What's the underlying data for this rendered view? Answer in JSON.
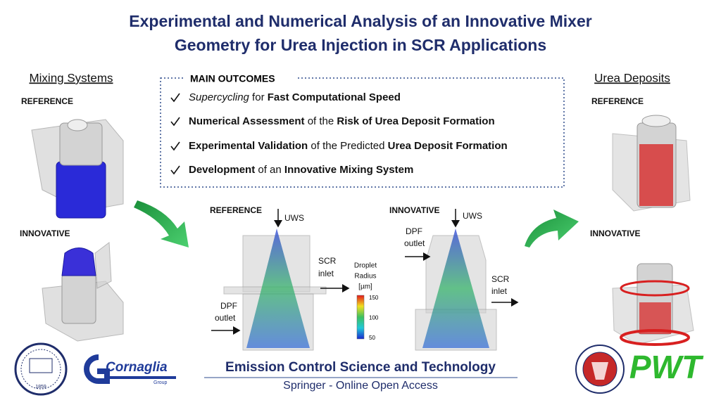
{
  "title": [
    "Experimental and Numerical Analysis of an Innovative Mixer",
    "Geometry for Urea Injection in SCR Applications"
  ],
  "left": {
    "heading": "Mixing Systems",
    "reference": "REFERENCE",
    "innovative": "INNOVATIVE"
  },
  "outcomes": {
    "heading": "MAIN OUTCOMES",
    "items": [
      [
        {
          "text": "Supercycling",
          "style": "italic"
        },
        {
          "text": " for ",
          "style": "normal"
        },
        {
          "text": "Fast Computational Speed",
          "style": "bold"
        }
      ],
      [
        {
          "text": "Numerical Assessment",
          "style": "bold"
        },
        {
          "text": " of the ",
          "style": "normal"
        },
        {
          "text": "Risk of Urea Deposit Formation",
          "style": "bold"
        }
      ],
      [
        {
          "text": "Experimental Validation",
          "style": "bold"
        },
        {
          "text": " of the Predicted ",
          "style": "normal"
        },
        {
          "text": "Urea Deposit Formation",
          "style": "bold"
        }
      ],
      [
        {
          "text": "Development",
          "style": "bold"
        },
        {
          "text": " of an ",
          "style": "normal"
        },
        {
          "text": "Innovative Mixing System",
          "style": "bold"
        }
      ]
    ]
  },
  "center": {
    "reference": {
      "label": "REFERENCE",
      "uws": "UWS",
      "scr": [
        "SCR",
        "inlet"
      ],
      "dpf": [
        "DPF",
        "outlet"
      ]
    },
    "colorbar": {
      "title": [
        "Droplet",
        "Radius",
        "[µm]"
      ],
      "ticks": [
        150,
        100,
        50
      ]
    },
    "innovative": {
      "label": "INNOVATIVE",
      "uws": "UWS",
      "dpf": [
        "DPF",
        "outlet"
      ],
      "scr": [
        "SCR",
        "inlet"
      ]
    }
  },
  "right": {
    "heading": "Urea Deposits",
    "reference": "REFERENCE",
    "innovative": "INNOVATIVE"
  },
  "footer": {
    "journal": "Emission Control Science and Technology",
    "publisher": "Springer - Online Open Access",
    "logos": {
      "polimi_year": "1859",
      "cornaglia": "Cornaglia",
      "cornaglia_sub": "Group",
      "pwt": "PWT"
    }
  }
}
